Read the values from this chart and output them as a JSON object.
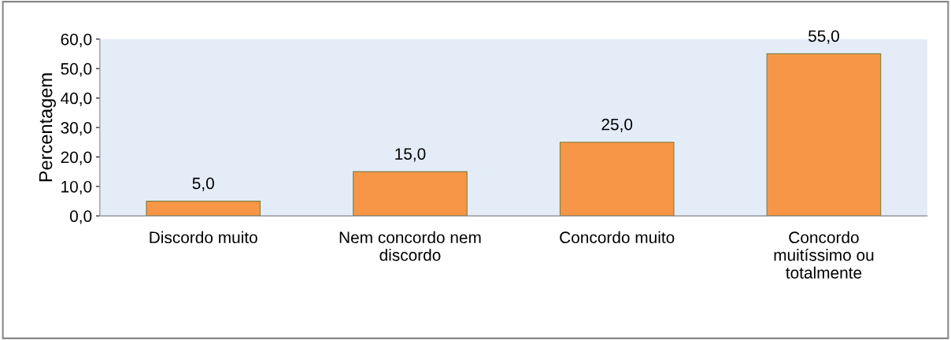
{
  "chart_data": {
    "type": "bar",
    "ylabel": "Percentagem",
    "categories": [
      "Discordo muito",
      "Nem concordo nem\ndiscordo",
      "Concordo muito",
      "Concordo\nmuitíssimo ou\ntotalmente"
    ],
    "values": [
      5.0,
      15.0,
      25.0,
      55.0
    ],
    "value_labels": [
      "5,0",
      "15,0",
      "25,0",
      "55,0"
    ],
    "color": "#f79646",
    "ylim": [
      0,
      60
    ],
    "yticks": [
      {
        "value": 0,
        "label": "0,0"
      },
      {
        "value": 10,
        "label": "10,0"
      },
      {
        "value": 20,
        "label": "20,0"
      },
      {
        "value": 30,
        "label": "30,0"
      },
      {
        "value": 40,
        "label": "40,0"
      },
      {
        "value": 50,
        "label": "50,0"
      },
      {
        "value": 60,
        "label": "60,0"
      }
    ],
    "grid": false
  }
}
